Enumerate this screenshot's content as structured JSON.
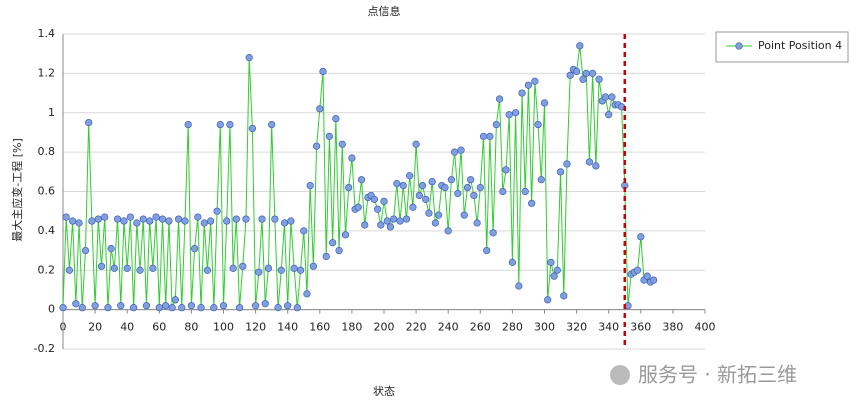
{
  "chart_data": {
    "type": "line",
    "title": "点信息",
    "xlabel": "状态",
    "ylabel": "最大主应变-工程 [%]",
    "watermark": "服务号 · 新拓三维",
    "x": [
      0,
      2,
      4,
      6,
      8,
      10,
      12,
      14,
      16,
      18,
      20,
      22,
      24,
      26,
      28,
      30,
      32,
      34,
      36,
      38,
      40,
      42,
      44,
      46,
      48,
      50,
      52,
      54,
      56,
      58,
      60,
      62,
      64,
      66,
      68,
      70,
      72,
      74,
      76,
      78,
      80,
      82,
      84,
      86,
      88,
      90,
      92,
      94,
      96,
      98,
      100,
      102,
      104,
      106,
      108,
      110,
      112,
      114,
      116,
      118,
      120,
      122,
      124,
      126,
      128,
      130,
      132,
      134,
      136,
      138,
      140,
      142,
      144,
      146,
      148,
      150,
      152,
      154,
      156,
      158,
      160,
      162,
      164,
      166,
      168,
      170,
      172,
      174,
      176,
      178,
      180,
      182,
      184,
      186,
      188,
      190,
      192,
      194,
      196,
      198,
      200,
      202,
      204,
      206,
      208,
      210,
      212,
      214,
      216,
      218,
      220,
      222,
      224,
      226,
      228,
      230,
      232,
      234,
      236,
      238,
      240,
      242,
      244,
      246,
      248,
      250,
      252,
      254,
      256,
      258,
      260,
      262,
      264,
      266,
      268,
      270,
      272,
      274,
      276,
      278,
      280,
      282,
      284,
      286,
      288,
      290,
      292,
      294,
      296,
      298,
      300,
      302,
      304,
      306,
      308,
      310,
      312,
      314,
      316,
      318,
      320,
      322,
      324,
      326,
      328,
      330,
      332,
      334,
      336,
      338,
      340,
      342,
      344,
      346,
      348,
      350,
      352,
      354,
      356,
      358,
      360,
      362,
      364,
      366,
      368
    ],
    "series": [
      {
        "name": "Point Position 4",
        "color": "#33cc33",
        "marker_color": "#7f9fe0",
        "values": [
          0.01,
          0.47,
          0.2,
          0.45,
          0.03,
          0.44,
          0.01,
          0.3,
          0.95,
          0.45,
          0.02,
          0.46,
          0.22,
          0.47,
          0.01,
          0.31,
          0.21,
          0.46,
          0.02,
          0.45,
          0.21,
          0.47,
          0.01,
          0.44,
          0.2,
          0.46,
          0.02,
          0.45,
          0.21,
          0.47,
          0.01,
          0.46,
          0.02,
          0.45,
          0.01,
          0.05,
          0.46,
          0.01,
          0.45,
          0.94,
          0.02,
          0.31,
          0.47,
          0.01,
          0.44,
          0.2,
          0.45,
          0.01,
          0.5,
          0.94,
          0.02,
          0.45,
          0.94,
          0.21,
          0.46,
          0.01,
          0.22,
          0.46,
          1.28,
          0.92,
          0.02,
          0.19,
          0.46,
          0.03,
          0.21,
          0.94,
          0.46,
          0.01,
          0.2,
          0.44,
          0.02,
          0.45,
          0.21,
          0.01,
          0.2,
          0.4,
          0.08,
          0.63,
          0.22,
          0.83,
          1.02,
          1.21,
          0.27,
          0.88,
          0.34,
          0.97,
          0.3,
          0.84,
          0.38,
          0.62,
          0.77,
          0.51,
          0.52,
          0.66,
          0.43,
          0.57,
          0.58,
          0.56,
          0.51,
          0.43,
          0.55,
          0.45,
          0.42,
          0.46,
          0.64,
          0.45,
          0.63,
          0.46,
          0.68,
          0.52,
          0.84,
          0.58,
          0.63,
          0.56,
          0.49,
          0.65,
          0.44,
          0.48,
          0.63,
          0.62,
          0.4,
          0.66,
          0.8,
          0.59,
          0.81,
          0.48,
          0.62,
          0.66,
          0.58,
          0.44,
          0.62,
          0.88,
          0.3,
          0.88,
          0.39,
          0.94,
          1.07,
          0.6,
          0.71,
          0.99,
          0.24,
          1.0,
          0.12,
          1.1,
          0.6,
          1.14,
          0.54,
          1.16,
          0.94,
          0.66,
          1.05,
          0.05,
          0.24,
          0.17,
          0.2,
          0.7,
          0.07,
          0.74,
          1.19,
          1.22,
          1.21,
          1.34,
          1.17,
          1.2,
          0.75,
          1.2,
          0.73,
          1.17,
          1.06,
          1.08,
          0.99,
          1.08,
          1.04,
          1.04,
          1.03,
          0.63,
          0.02,
          0.18,
          0.19,
          0.2,
          0.37,
          0.15,
          0.17,
          0.14,
          0.15
        ]
      }
    ],
    "vline": {
      "x": 350,
      "color": "#cc0000"
    },
    "xlim": [
      0,
      400
    ],
    "xticks": [
      0,
      20,
      40,
      60,
      80,
      100,
      120,
      140,
      160,
      180,
      200,
      220,
      240,
      260,
      280,
      300,
      320,
      340,
      360,
      380,
      400
    ],
    "ylim": [
      -0.2,
      1.4
    ],
    "yticks": [
      -0.2,
      0,
      0.2,
      0.4,
      0.6,
      0.8,
      1,
      1.2,
      1.4
    ],
    "grid": true,
    "legend": "upper right"
  }
}
